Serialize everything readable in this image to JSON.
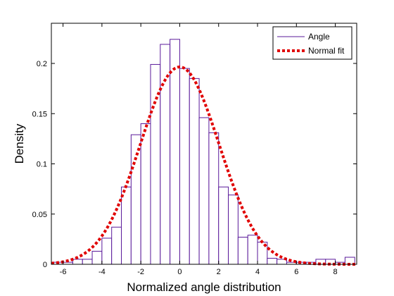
{
  "chart_data": {
    "type": "bar",
    "title": "",
    "xlabel": "Normalized angle distribution",
    "ylabel": "Density",
    "xlim": [
      -6.6,
      9.1
    ],
    "ylim": [
      0,
      0.24
    ],
    "grid": false,
    "legend_position": "top-right",
    "x_ticks": [
      -6,
      -4,
      -2,
      0,
      2,
      4,
      6,
      8
    ],
    "x_tick_labels": [
      "-6",
      "-4",
      "-2",
      "0",
      "2",
      "4",
      "6",
      "8"
    ],
    "y_ticks": [
      0,
      0.05,
      0.1,
      0.15,
      0.2
    ],
    "y_tick_labels": [
      "0",
      "0.05",
      "0.1",
      "0.15",
      "0.2"
    ],
    "series": [
      {
        "name": "Angle",
        "kind": "histogram",
        "color": "#5a1a9a",
        "bin_width": 0.5,
        "bin_starts": [
          -6.5,
          -6.0,
          -5.5,
          -5.0,
          -4.5,
          -4.0,
          -3.5,
          -3.0,
          -2.5,
          -2.0,
          -1.5,
          -1.0,
          -0.5,
          0.0,
          0.5,
          1.0,
          1.5,
          2.0,
          2.5,
          3.0,
          3.5,
          4.0,
          4.5,
          5.0,
          5.5,
          6.0,
          6.5,
          7.0,
          7.5,
          8.0,
          8.5
        ],
        "values": [
          0.002,
          0.002,
          0.005,
          0.005,
          0.013,
          0.026,
          0.037,
          0.077,
          0.129,
          0.14,
          0.199,
          0.219,
          0.224,
          0.195,
          0.185,
          0.146,
          0.131,
          0.077,
          0.069,
          0.027,
          0.029,
          0.022,
          0.006,
          0.005,
          0.002,
          0.002,
          0.002,
          0.005,
          0.005,
          0.002,
          0.007
        ]
      },
      {
        "name": "Normal fit",
        "kind": "line",
        "color": "#e00000",
        "style": "dotted",
        "mean": 0.0,
        "std": 2.03
      }
    ]
  }
}
